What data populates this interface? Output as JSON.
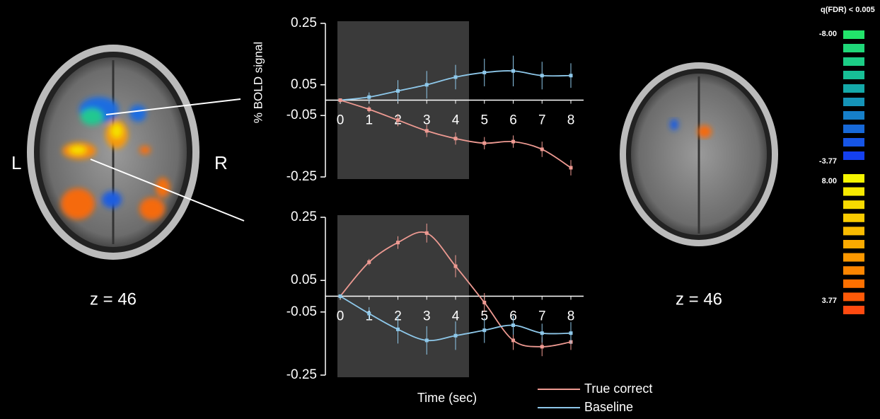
{
  "chart_data": [
    {
      "type": "line",
      "y_label": "% BOLD signal",
      "x": [
        0,
        1,
        2,
        3,
        4,
        5,
        6,
        7,
        8
      ],
      "xlim": [
        0,
        8
      ],
      "xticks": [
        0,
        1,
        2,
        3,
        4,
        5,
        6,
        7,
        8
      ],
      "ylim": [
        -0.25,
        0.25
      ],
      "yticks": [
        0.25,
        0.05,
        -0.05,
        -0.25
      ],
      "series": [
        {
          "color": "#8ec8ea",
          "values": [
            0,
            0.01,
            0.03,
            0.05,
            0.075,
            0.09,
            0.095,
            0.08,
            0.08
          ],
          "errors": [
            0,
            0.015,
            0.035,
            0.045,
            0.04,
            0.045,
            0.05,
            0.045,
            0.04
          ]
        },
        {
          "color": "#ee9a92",
          "values": [
            0,
            -0.03,
            -0.065,
            -0.1,
            -0.125,
            -0.14,
            -0.135,
            -0.16,
            -0.22
          ],
          "errors": [
            0,
            0.01,
            0.02,
            0.02,
            0.02,
            0.02,
            0.02,
            0.025,
            0.025
          ]
        }
      ]
    },
    {
      "type": "line",
      "x_label": "Time (sec)",
      "legend": true,
      "x": [
        0,
        1,
        2,
        3,
        4,
        5,
        6,
        7,
        8
      ],
      "xlim": [
        0,
        8
      ],
      "xticks": [
        0,
        1,
        2,
        3,
        4,
        5,
        6,
        7,
        8
      ],
      "ylim": [
        -0.25,
        0.25
      ],
      "yticks": [
        0.25,
        0.05,
        -0.05,
        -0.25
      ],
      "series": [
        {
          "name": "True correct",
          "color": "#ee9a92",
          "values": [
            0,
            0.108,
            0.17,
            0.2,
            0.095,
            -0.02,
            -0.14,
            -0.16,
            -0.145
          ],
          "errors": [
            0,
            0.01,
            0.02,
            0.03,
            0.035,
            0.03,
            0.03,
            0.03,
            0.025
          ]
        },
        {
          "name": "Baseline",
          "color": "#8ec8ea",
          "values": [
            0,
            -0.055,
            -0.105,
            -0.14,
            -0.125,
            -0.108,
            -0.092,
            -0.117,
            -0.117
          ],
          "errors": [
            0,
            0.02,
            0.045,
            0.045,
            0.045,
            0.04,
            0.03,
            0.03,
            0.035
          ]
        }
      ]
    }
  ],
  "left_brain": {
    "left_label": "L",
    "right_label": "R",
    "z_label": "z = 46"
  },
  "right_brain": {
    "z_label": "z = 46"
  },
  "colorbar": {
    "title": "q(FDR) < 0.005",
    "negative_max_label": "-8.00",
    "negative_min_label": "-3.77",
    "positive_max_label": "8.00",
    "positive_min_label": "3.77",
    "negative_colors": [
      "#22e36a",
      "#1fd879",
      "#1ccd86",
      "#17bf96",
      "#14a9a9",
      "#1594b8",
      "#167fc9",
      "#1769d8",
      "#1655e6",
      "#1440f0"
    ],
    "positive_colors": [
      "#f5f500",
      "#f5e800",
      "#f7da00",
      "#f8cb00",
      "#f9bb00",
      "#faaa00",
      "#fb9800",
      "#fc8500",
      "#fd7000",
      "#fe5a08",
      "#ff4a10"
    ]
  }
}
